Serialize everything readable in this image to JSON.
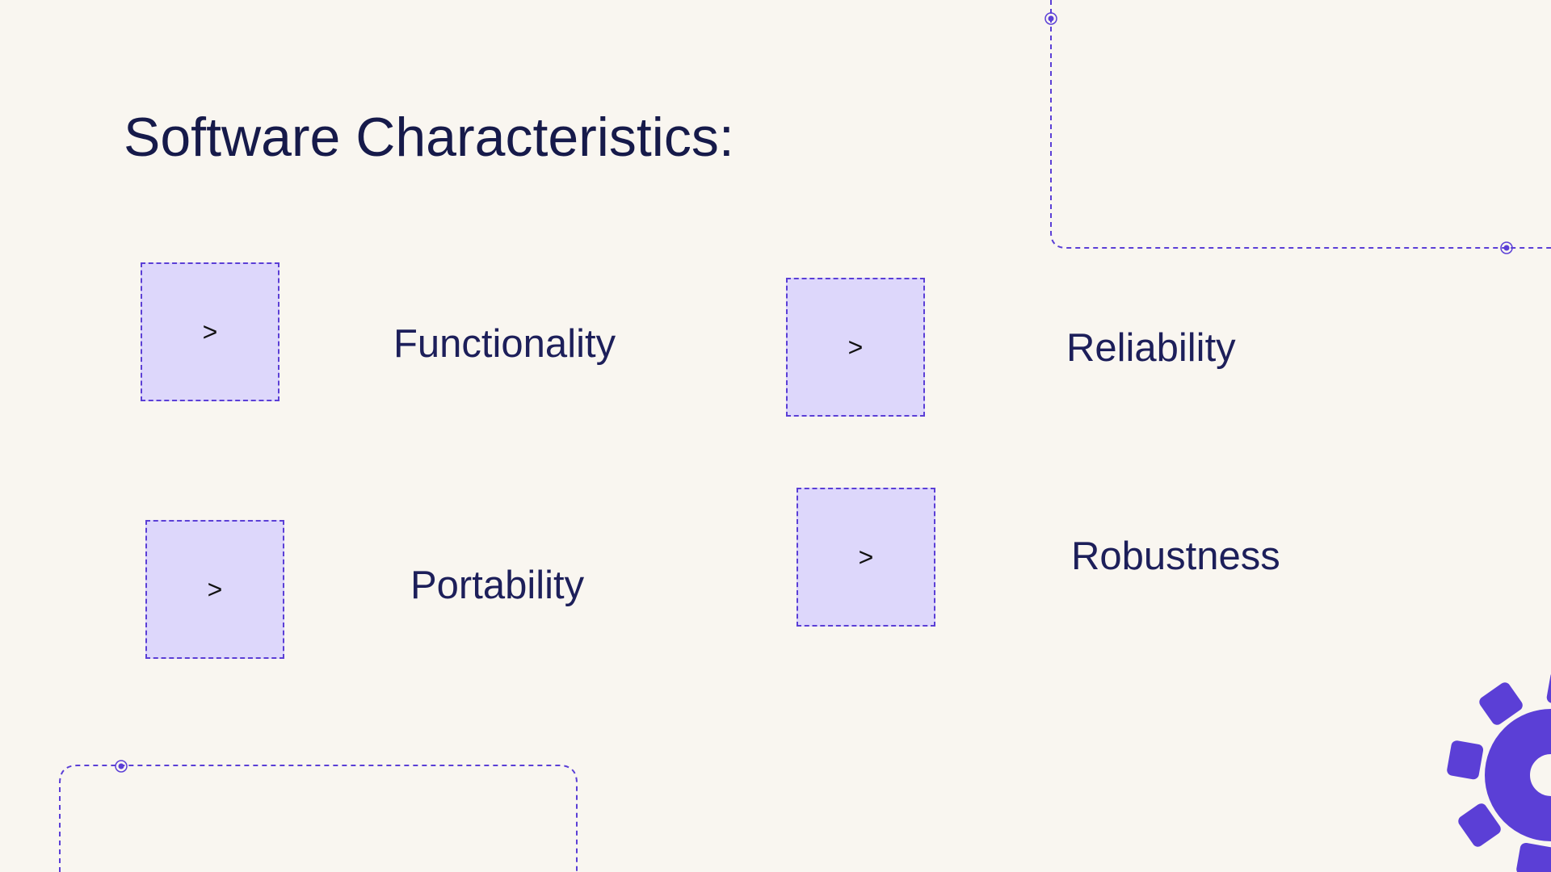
{
  "slide": {
    "title": "Software Characteristics:",
    "colors": {
      "background": "#f9f6f0",
      "title": "#161a4a",
      "label": "#1d1f5a",
      "box_fill": "#ddd7fb",
      "accent": "#5b3fd6",
      "gear": "#5b3fd6"
    },
    "items": [
      {
        "marker": ">",
        "label": "Functionality"
      },
      {
        "marker": ">",
        "label": "Reliability"
      },
      {
        "marker": ">",
        "label": "Portability"
      },
      {
        "marker": ">",
        "label": "Robustness"
      }
    ],
    "decorations": {
      "top_right_frame_icon": "dashed-corner-frame",
      "bottom_left_frame_icon": "dashed-rounded-frame",
      "corner_icon": "gear-icon"
    }
  }
}
